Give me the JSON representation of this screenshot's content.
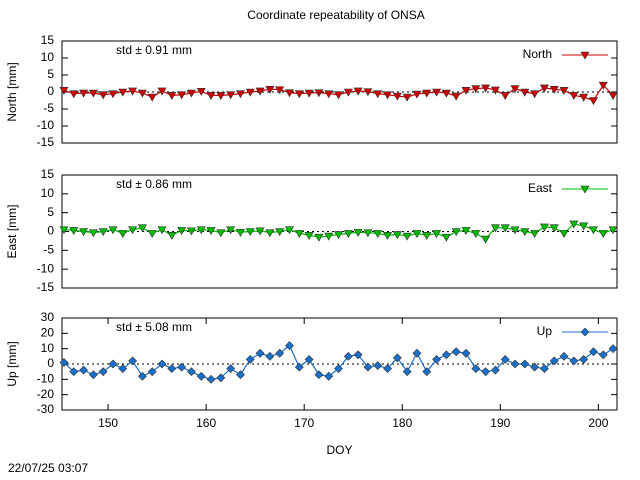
{
  "title": "Coordinate repeatability of ONSA",
  "footer": "22/07/25 03:07",
  "chart_data": [
    {
      "type": "line",
      "ylabel": "North [mm]",
      "annotation": "std ± 0.91 mm",
      "xlim": [
        145.3,
        201.9
      ],
      "ylim": [
        -15,
        15
      ],
      "yticks": [
        -15,
        -10,
        -5,
        0,
        5,
        10,
        15
      ],
      "marker": "triangle-down",
      "x": [
        145.5,
        146.5,
        147.5,
        148.5,
        149.5,
        150.5,
        151.5,
        152.5,
        153.5,
        154.5,
        155.5,
        156.5,
        157.5,
        158.5,
        159.5,
        160.5,
        161.5,
        162.5,
        163.5,
        164.5,
        165.5,
        166.5,
        167.5,
        168.5,
        169.5,
        170.5,
        171.5,
        172.5,
        173.5,
        174.5,
        175.5,
        176.5,
        177.5,
        178.5,
        179.5,
        180.5,
        181.5,
        182.5,
        183.5,
        184.5,
        185.5,
        186.5,
        187.5,
        188.5,
        189.5,
        190.5,
        191.5,
        192.5,
        193.5,
        194.5,
        195.5,
        196.5,
        197.5,
        198.5,
        199.5,
        200.5,
        201.5
      ],
      "series": [
        {
          "name": "North",
          "color": "#cc0000",
          "values": [
            0.5,
            -0.5,
            -0.3,
            -0.3,
            -0.8,
            -0.5,
            0,
            0.3,
            -0.3,
            -1.5,
            0.3,
            -1,
            -0.8,
            -0.3,
            0.2,
            -1,
            -1,
            -0.8,
            -0.5,
            0,
            0.3,
            0.8,
            0.7,
            -0.2,
            -0.5,
            -0.3,
            -0.2,
            -0.5,
            -0.8,
            0,
            0.3,
            0.1,
            -0.5,
            -0.8,
            -1.2,
            -1.5,
            -0.6,
            -0.3,
            0,
            -0.3,
            -1.2,
            0.5,
            1,
            1.2,
            0.6,
            -1,
            1,
            0,
            -0.5,
            1.2,
            0.8,
            0.5,
            -1,
            -1.5,
            -2.5,
            2,
            -1
          ]
        }
      ]
    },
    {
      "type": "line",
      "ylabel": "East [mm]",
      "annotation": "std ± 0.86 mm",
      "xlim": [
        145.3,
        201.9
      ],
      "ylim": [
        -15,
        15
      ],
      "yticks": [
        -15,
        -10,
        -5,
        0,
        5,
        10,
        15
      ],
      "marker": "triangle-down",
      "x": [
        145.5,
        146.5,
        147.5,
        148.5,
        149.5,
        150.5,
        151.5,
        152.5,
        153.5,
        154.5,
        155.5,
        156.5,
        157.5,
        158.5,
        159.5,
        160.5,
        161.5,
        162.5,
        163.5,
        164.5,
        165.5,
        166.5,
        167.5,
        168.5,
        169.5,
        170.5,
        171.5,
        172.5,
        173.5,
        174.5,
        175.5,
        176.5,
        177.5,
        178.5,
        179.5,
        180.5,
        181.5,
        182.5,
        183.5,
        184.5,
        185.5,
        186.5,
        187.5,
        188.5,
        189.5,
        190.5,
        191.5,
        192.5,
        193.5,
        194.5,
        195.5,
        196.5,
        197.5,
        198.5,
        199.5,
        200.5,
        201.5
      ],
      "series": [
        {
          "name": "East",
          "color": "#00bb00",
          "values": [
            0.5,
            0.3,
            0,
            -0.3,
            0,
            0.5,
            -0.5,
            0.5,
            1,
            -0.5,
            0.5,
            -1,
            0.3,
            0.2,
            0.5,
            0.3,
            -0.3,
            0.5,
            -0.2,
            0,
            0.2,
            -0.3,
            0,
            0.5,
            -0.5,
            -1,
            -1.5,
            -1.2,
            -0.8,
            -0.5,
            -0.2,
            -0.3,
            -0.5,
            -1,
            -0.8,
            -1.2,
            -0.5,
            -1,
            -0.5,
            -1.5,
            0,
            0.3,
            -0.5,
            -2,
            1,
            1,
            0.5,
            0,
            -0.5,
            1.2,
            1,
            -0.5,
            2,
            1.5,
            0.5,
            -0.5,
            0.5
          ]
        }
      ]
    },
    {
      "type": "line",
      "ylabel": "Up [mm]",
      "annotation": "std ± 5.08 mm",
      "xlabel": "DOY",
      "xlim": [
        145.3,
        201.9
      ],
      "ylim": [
        -30,
        30
      ],
      "yticks": [
        -30,
        -20,
        -10,
        0,
        10,
        20,
        30
      ],
      "xticks": [
        150,
        160,
        170,
        180,
        190,
        200
      ],
      "marker": "diamond",
      "x": [
        145.5,
        146.5,
        147.5,
        148.5,
        149.5,
        150.5,
        151.5,
        152.5,
        153.5,
        154.5,
        155.5,
        156.5,
        157.5,
        158.5,
        159.5,
        160.5,
        161.5,
        162.5,
        163.5,
        164.5,
        165.5,
        166.5,
        167.5,
        168.5,
        169.5,
        170.5,
        171.5,
        172.5,
        173.5,
        174.5,
        175.5,
        176.5,
        177.5,
        178.5,
        179.5,
        180.5,
        181.5,
        182.5,
        183.5,
        184.5,
        185.5,
        186.5,
        187.5,
        188.5,
        189.5,
        190.5,
        191.5,
        192.5,
        193.5,
        194.5,
        195.5,
        196.5,
        197.5,
        198.5,
        199.5,
        200.5,
        201.5
      ],
      "series": [
        {
          "name": "Up",
          "color": "#1a6fc9",
          "values": [
            1,
            -5,
            -4,
            -7,
            -5,
            0,
            -3,
            2,
            -8,
            -5,
            0,
            -3,
            -2,
            -5,
            -8,
            -10,
            -9,
            -3,
            -7,
            3,
            7,
            5,
            7,
            12,
            -2,
            3,
            -7,
            -8,
            -3,
            5,
            6,
            -2,
            -1,
            -3,
            4,
            -5,
            7,
            -5,
            3,
            6,
            8,
            7,
            -3,
            -5,
            -4,
            3,
            0,
            0,
            -2,
            -3,
            2,
            5,
            2,
            3,
            8,
            6,
            10
          ]
        }
      ]
    }
  ]
}
